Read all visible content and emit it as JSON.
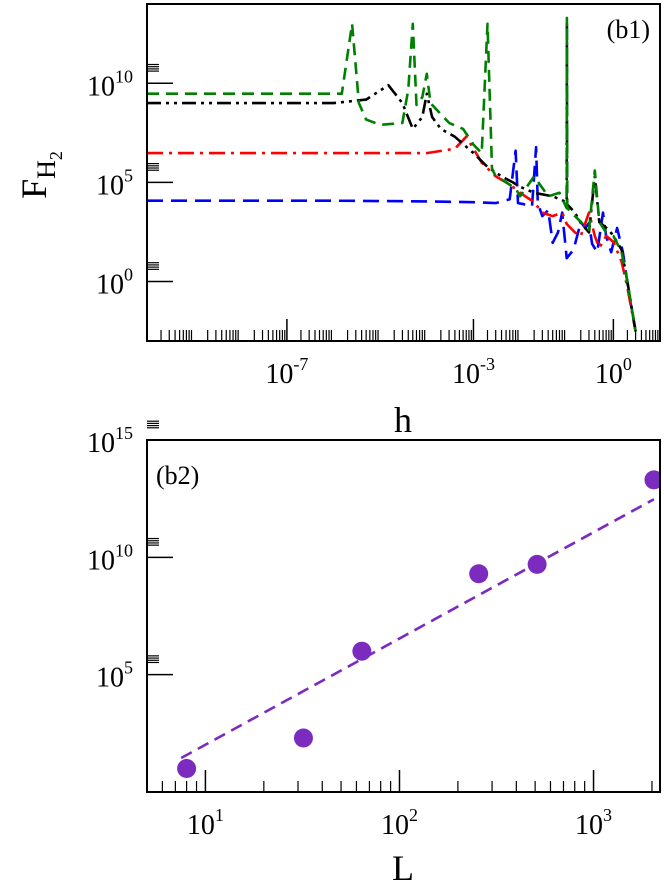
{
  "chart_data": [
    {
      "type": "line",
      "panel_label": "(b1)",
      "xlabel": "h",
      "ylabel": "F",
      "ylabel_subscript": "H",
      "ylabel_subsubscript": "2",
      "x_scale": "log",
      "y_scale": "log",
      "xlim": [
        1e-10,
        10
      ],
      "ylim": [
        0.001,
        100000000000000.0
      ],
      "x_ticks": [
        {
          "value": 1e-07,
          "base": "10",
          "exp": "-7"
        },
        {
          "value": 0.001,
          "base": "10",
          "exp": "-3"
        },
        {
          "value": 1,
          "base": "10",
          "exp": "0"
        }
      ],
      "y_ticks": [
        {
          "value": 1,
          "base": "10",
          "exp": "0"
        },
        {
          "value": 100000,
          "base": "10",
          "exp": "5"
        },
        {
          "value": 10000000000,
          "base": "10",
          "exp": "10"
        }
      ],
      "grid": false,
      "series": [
        {
          "color": "#0000ff",
          "dash": "long-dash",
          "points": [
            [
              1e-10,
              12000
            ],
            [
              1e-08,
              12000
            ],
            [
              1e-06,
              12000
            ],
            [
              0.0001,
              11000
            ],
            [
              0.001,
              10000
            ],
            [
              0.003,
              9000
            ],
            [
              0.006,
              14000
            ],
            [
              0.008,
              4000000
            ],
            [
              0.009,
              9000
            ],
            [
              0.012,
              8000
            ],
            [
              0.018,
              6000
            ],
            [
              0.022,
              6000000
            ],
            [
              0.024,
              9000
            ],
            [
              0.03,
              2000
            ],
            [
              0.04,
              4000
            ],
            [
              0.05,
              90
            ],
            [
              0.065,
              300
            ],
            [
              0.08,
              3000
            ],
            [
              0.1,
              15
            ],
            [
              0.14,
              40
            ],
            [
              0.2,
              1000
            ],
            [
              0.25,
              500
            ],
            [
              0.3,
              900
            ],
            [
              0.35,
              80
            ],
            [
              0.45,
              30
            ],
            [
              0.6,
              3000
            ],
            [
              0.7,
              200
            ],
            [
              0.9,
              30
            ],
            [
              1.2,
              500
            ],
            [
              1.6,
              30
            ],
            [
              2.2,
              0.2
            ],
            [
              3,
              0.003
            ]
          ]
        },
        {
          "color": "#ff0000",
          "dash": "dash-dot",
          "points": [
            [
              1e-10,
              3000000
            ],
            [
              1e-06,
              3000000
            ],
            [
              0.0001,
              3000000
            ],
            [
              0.0004,
              5000000
            ],
            [
              0.0007,
              20000000
            ],
            [
              0.001,
              5000000
            ],
            [
              0.0015,
              1000000
            ],
            [
              0.003,
              200000
            ],
            [
              0.006,
              80000
            ],
            [
              0.01,
              30000
            ],
            [
              0.02,
              10000
            ],
            [
              0.03,
              3000
            ],
            [
              0.05,
              2000
            ],
            [
              0.08,
              3000
            ],
            [
              0.1,
              800
            ],
            [
              0.15,
              300
            ],
            [
              0.2,
              200
            ],
            [
              0.3,
              3000
            ],
            [
              0.4,
              200
            ],
            [
              0.5,
              50
            ],
            [
              0.7,
              200
            ],
            [
              1,
              100
            ],
            [
              1.5,
              10
            ],
            [
              2,
              0.5
            ],
            [
              3,
              0.003
            ]
          ]
        },
        {
          "color": "#000000",
          "dash": "dash-dot-dot",
          "points": [
            [
              1e-10,
              1000000000
            ],
            [
              1e-06,
              1000000000
            ],
            [
              5e-06,
              1500000000
            ],
            [
              1.5e-05,
              8000000000
            ],
            [
              3e-05,
              1000000000
            ],
            [
              5e-05,
              50000000
            ],
            [
              8e-05,
              200000000
            ],
            [
              0.0001,
              3000000000
            ],
            [
              0.00013,
              200000000
            ],
            [
              0.0002,
              50000000
            ],
            [
              0.0004,
              20000000
            ],
            [
              0.001,
              3000000
            ],
            [
              0.002,
              600000
            ],
            [
              0.004,
              200000
            ],
            [
              0.007,
              100000
            ],
            [
              0.01,
              60000
            ],
            [
              0.02,
              30000
            ],
            [
              0.05,
              20000
            ],
            [
              0.1,
              10000
            ],
            [
              0.101,
              10000000000000
            ],
            [
              0.102,
              8000
            ],
            [
              0.15,
              3000
            ],
            [
              0.2,
              900
            ],
            [
              0.3,
              300
            ],
            [
              0.4,
              200000
            ],
            [
              0.5,
              1000
            ],
            [
              0.8,
              400
            ],
            [
              1,
              200
            ],
            [
              1.5,
              40
            ],
            [
              2,
              1
            ],
            [
              3,
              0.003
            ]
          ]
        },
        {
          "color": "#008000",
          "dash": "dash",
          "points": [
            [
              1e-10,
              3000000000
            ],
            [
              1e-06,
              3000000000
            ],
            [
              1.5e-06,
              3000000000
            ],
            [
              2.5e-06,
              10000000000000
            ],
            [
              3.5e-06,
              1000000000
            ],
            [
              5e-06,
              150000000
            ],
            [
              1e-05,
              80000000
            ],
            [
              3e-05,
              100000000
            ],
            [
              4e-05,
              5000000000
            ],
            [
              5e-05,
              10000000000000
            ],
            [
              6e-05,
              800000000
            ],
            [
              8e-05,
              2000000000
            ],
            [
              0.0001,
              30000000000
            ],
            [
              0.00012,
              1000000000
            ],
            [
              0.0003,
              100000000
            ],
            [
              0.0006,
              50000000
            ],
            [
              0.001,
              8000000
            ],
            [
              0.0015,
              3000000
            ],
            [
              0.002,
              10000000000000
            ],
            [
              0.0025,
              500000
            ],
            [
              0.003,
              200000
            ],
            [
              0.005,
              100000
            ],
            [
              0.008,
              50000
            ],
            [
              0.01,
              20000
            ],
            [
              0.02,
              200000
            ],
            [
              0.04,
              20000
            ],
            [
              0.07,
              30000
            ],
            [
              0.1,
              5000
            ],
            [
              0.101,
              20000000000000
            ],
            [
              0.103,
              5000
            ],
            [
              0.15,
              2000
            ],
            [
              0.3,
              400
            ],
            [
              0.4,
              400000
            ],
            [
              0.5,
              1000
            ],
            [
              0.7,
              300
            ],
            [
              1,
              200
            ],
            [
              1.5,
              30
            ],
            [
              2,
              1
            ],
            [
              3,
              0.003
            ]
          ]
        }
      ]
    },
    {
      "type": "scatter",
      "panel_label": "(b2)",
      "xlabel": "L",
      "ylabel": "",
      "x_scale": "log",
      "y_scale": "log",
      "xlim": [
        5,
        2200
      ],
      "ylim": [
        1,
        1000000000000000.0
      ],
      "x_ticks": [
        {
          "value": 10,
          "base": "10",
          "exp": "1"
        },
        {
          "value": 100,
          "base": "10",
          "exp": "2"
        },
        {
          "value": 1000,
          "base": "10",
          "exp": "3"
        }
      ],
      "y_ticks": [
        {
          "value": 100000,
          "base": "10",
          "exp": "5"
        },
        {
          "value": 10000000000,
          "base": "10",
          "exp": "10"
        },
        {
          "value": 1000000000000000,
          "base": "10",
          "exp": "15"
        }
      ],
      "grid": false,
      "points": {
        "color": "#7b2cbf",
        "x": [
          8,
          32,
          64,
          256,
          512,
          2048
        ],
        "y": [
          10,
          200,
          1000000,
          2000000000,
          5000000000,
          20000000000000
        ]
      },
      "fit_line": {
        "color": "#7b2cbf",
        "dash": "dash",
        "x": [
          7.5,
          2048
        ],
        "y": [
          28,
          3000000000000
        ]
      }
    }
  ]
}
